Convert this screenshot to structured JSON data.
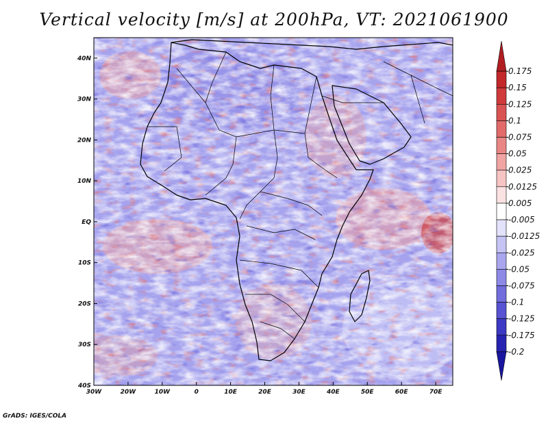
{
  "title": "Vertical velocity [m/s] at 200hPa, VT: 2021061900",
  "credit": "GrADS: IGES/COLA",
  "map": {
    "lat_labels": [
      {
        "value": 40,
        "label": "40N"
      },
      {
        "value": 30,
        "label": "30N"
      },
      {
        "value": 20,
        "label": "20N"
      },
      {
        "value": 10,
        "label": "10N"
      },
      {
        "value": 0,
        "label": "EQ"
      },
      {
        "value": -10,
        "label": "10S"
      },
      {
        "value": -20,
        "label": "20S"
      },
      {
        "value": -30,
        "label": "30S"
      },
      {
        "value": -40,
        "label": "40S"
      }
    ],
    "lon_labels": [
      {
        "value": -30,
        "label": "30W"
      },
      {
        "value": -20,
        "label": "20W"
      },
      {
        "value": -10,
        "label": "10W"
      },
      {
        "value": 0,
        "label": "0"
      },
      {
        "value": 10,
        "label": "10E"
      },
      {
        "value": 20,
        "label": "20E"
      },
      {
        "value": 30,
        "label": "30E"
      },
      {
        "value": 40,
        "label": "40E"
      },
      {
        "value": 50,
        "label": "50E"
      },
      {
        "value": 60,
        "label": "60E"
      },
      {
        "value": 70,
        "label": "70E"
      }
    ],
    "lon_range": [
      -30,
      75
    ],
    "lat_range": [
      -40,
      45
    ]
  },
  "colorbar": {
    "labels": [
      "0.175",
      "0.15",
      "0.125",
      "0.1",
      "0.075",
      "0.05",
      "0.025",
      "0.0125",
      "0.005",
      "-0.005",
      "-0.0125",
      "-0.025",
      "-0.05",
      "-0.075",
      "-0.1",
      "-0.125",
      "-0.175",
      "-0.2"
    ],
    "colors": [
      "#b01e22",
      "#c3282b",
      "#d03a3b",
      "#d95352",
      "#e26b6a",
      "#e98685",
      "#f0a4a3",
      "#f6c4c3",
      "#fbe2e2",
      "#ffffff",
      "#e3e2fb",
      "#c6c4f5",
      "#a9a6ee",
      "#8d89e7",
      "#716ddd",
      "#5753d2",
      "#3c39c4",
      "#2723b2",
      "#1a16a0"
    ]
  }
}
